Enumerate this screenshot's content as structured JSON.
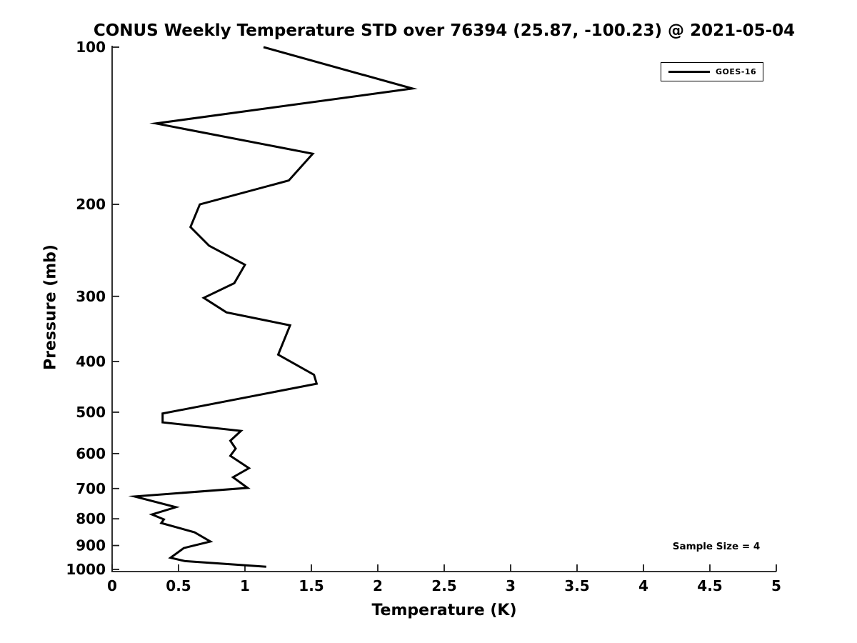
{
  "title": "CONUS Weekly Temperature STD over 76394 (25.87, -100.23) @ 2021-05-04",
  "annotation": {
    "sample_size_label": "Sample Size = 4"
  },
  "legend": {
    "position": "top-right",
    "border": "#000000",
    "entries": [
      "GOES-16"
    ]
  },
  "axis_color": "#1a1a1a",
  "chart_data": {
    "type": "line",
    "title": "CONUS Weekly Temperature STD over 76394 (25.87, -100.23) @ 2021-05-04",
    "xlabel": "Temperature (K)",
    "ylabel": "Pressure (mb)",
    "xlim": [
      0,
      5
    ],
    "x_ticks": [
      0,
      0.5,
      1,
      1.5,
      2,
      2.5,
      3,
      3.5,
      4,
      4.5,
      5
    ],
    "ylim": [
      100,
      1000
    ],
    "y_ticks": [
      100,
      200,
      300,
      400,
      500,
      600,
      700,
      800,
      900,
      1000
    ],
    "yscale": "log",
    "y_direction": "reversed",
    "grid": false,
    "legend_position": "top-right",
    "series": [
      {
        "name": "GOES-16",
        "color": "#000000",
        "line_width": 3,
        "points_format": "[temperature_std_K, pressure_mb]",
        "points": [
          [
            1.14,
            100
          ],
          [
            2.26,
            120
          ],
          [
            0.33,
            140
          ],
          [
            1.51,
            160
          ],
          [
            1.33,
            180
          ],
          [
            0.66,
            200
          ],
          [
            0.59,
            221
          ],
          [
            0.73,
            240
          ],
          [
            1.0,
            261
          ],
          [
            0.92,
            283
          ],
          [
            0.69,
            302
          ],
          [
            0.86,
            322
          ],
          [
            1.34,
            341
          ],
          [
            1.25,
            388
          ],
          [
            1.52,
            424
          ],
          [
            1.54,
            441
          ],
          [
            0.38,
            503
          ],
          [
            0.38,
            523
          ],
          [
            0.97,
            543
          ],
          [
            0.89,
            567
          ],
          [
            0.93,
            587
          ],
          [
            0.89,
            606
          ],
          [
            1.03,
            640
          ],
          [
            0.91,
            666
          ],
          [
            1.02,
            698
          ],
          [
            0.17,
            725
          ],
          [
            0.48,
            760
          ],
          [
            0.3,
            785
          ],
          [
            0.39,
            802
          ],
          [
            0.37,
            815
          ],
          [
            0.62,
            849
          ],
          [
            0.74,
            884
          ],
          [
            0.54,
            910
          ],
          [
            0.44,
            950
          ],
          [
            0.55,
            964
          ],
          [
            1.16,
            988
          ]
        ]
      }
    ]
  }
}
